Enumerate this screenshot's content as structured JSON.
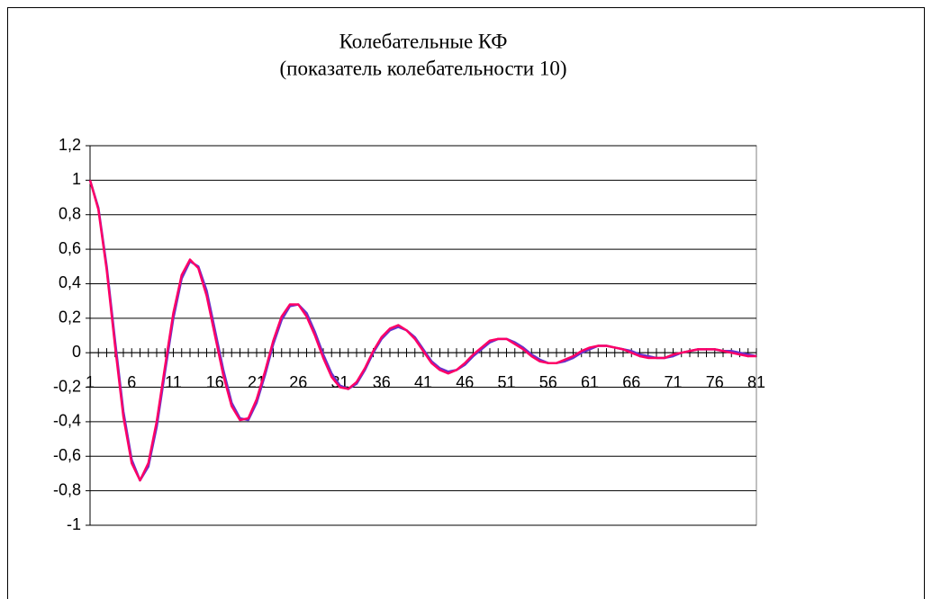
{
  "chart_data": {
    "type": "line",
    "title": "Колебательные КФ",
    "subtitle": "(показатель колебательности 10)",
    "categories": [
      "1",
      null,
      null,
      null,
      null,
      "6",
      null,
      null,
      null,
      null,
      "11",
      null,
      null,
      null,
      null,
      "16",
      null,
      null,
      null,
      null,
      "21",
      null,
      null,
      null,
      null,
      "26",
      null,
      null,
      null,
      null,
      "31",
      null,
      null,
      null,
      null,
      "36",
      null,
      null,
      null,
      null,
      "41",
      null,
      null,
      null,
      null,
      "46",
      null,
      null,
      null,
      null,
      "51",
      null,
      null,
      null,
      null,
      "56",
      null,
      null,
      null,
      null,
      "61",
      null,
      null,
      null,
      null,
      "66",
      null,
      null,
      null,
      null,
      "71",
      null,
      null,
      null,
      null,
      "76",
      null,
      null,
      null,
      null,
      "81"
    ],
    "series": [
      {
        "color": "#6633cc",
        "values": [
          1,
          0.84,
          0.5,
          0.07,
          -0.34,
          -0.62,
          -0.74,
          -0.66,
          -0.43,
          -0.11,
          0.2,
          0.43,
          0.53,
          0.5,
          0.36,
          0.13,
          -0.1,
          -0.29,
          -0.38,
          -0.39,
          -0.29,
          -0.13,
          0.05,
          0.19,
          0.27,
          0.28,
          0.23,
          0.12,
          -0.01,
          -0.12,
          -0.19,
          -0.21,
          -0.18,
          -0.1,
          0,
          0.08,
          0.13,
          0.15,
          0.13,
          0.09,
          0.02,
          -0.05,
          -0.09,
          -0.11,
          -0.1,
          -0.07,
          -0.02,
          0.02,
          0.06,
          0.08,
          0.08,
          0.06,
          0.03,
          -0.01,
          -0.04,
          -0.06,
          -0.06,
          -0.05,
          -0.03,
          0,
          0.02,
          0.04,
          0.04,
          0.03,
          0.02,
          0.01,
          -0.01,
          -0.02,
          -0.03,
          -0.03,
          -0.02,
          0,
          0.01,
          0.02,
          0.02,
          0.02,
          0.01,
          0.01,
          0,
          -0.01,
          -0.02
        ]
      },
      {
        "color": "#ff0066",
        "values": [
          1,
          0.83,
          0.48,
          0.04,
          -0.37,
          -0.64,
          -0.74,
          -0.64,
          -0.4,
          -0.08,
          0.23,
          0.45,
          0.54,
          0.49,
          0.33,
          0.1,
          -0.13,
          -0.31,
          -0.39,
          -0.38,
          -0.27,
          -0.11,
          0.07,
          0.21,
          0.28,
          0.28,
          0.21,
          0.1,
          -0.03,
          -0.14,
          -0.2,
          -0.21,
          -0.17,
          -0.09,
          0.01,
          0.09,
          0.14,
          0.16,
          0.13,
          0.08,
          0.01,
          -0.06,
          -0.1,
          -0.12,
          -0.1,
          -0.06,
          -0.01,
          0.03,
          0.07,
          0.08,
          0.08,
          0.05,
          0.02,
          -0.02,
          -0.05,
          -0.06,
          -0.06,
          -0.04,
          -0.02,
          0.01,
          0.03,
          0.04,
          0.04,
          0.03,
          0.02,
          0,
          -0.02,
          -0.03,
          -0.03,
          -0.03,
          -0.01,
          0,
          0.01,
          0.02,
          0.02,
          0.02,
          0.01,
          0,
          -0.01,
          -0.02,
          -0.02
        ]
      }
    ],
    "ylim": [
      -1,
      1.2
    ],
    "yticks": [
      {
        "value": -1,
        "label": "-1"
      },
      {
        "value": -0.8,
        "label": "-0,8"
      },
      {
        "value": -0.6,
        "label": "-0,6"
      },
      {
        "value": -0.4,
        "label": "-0,4"
      },
      {
        "value": -0.2,
        "label": "-0,2"
      },
      {
        "value": 0,
        "label": "0"
      },
      {
        "value": 0.2,
        "label": "0,2"
      },
      {
        "value": 0.4,
        "label": "0,4"
      },
      {
        "value": 0.6,
        "label": "0,6"
      },
      {
        "value": 0.8,
        "label": "0,8"
      },
      {
        "value": 1,
        "label": "1"
      },
      {
        "value": 1.2,
        "label": "1,2"
      }
    ],
    "grid": true
  }
}
